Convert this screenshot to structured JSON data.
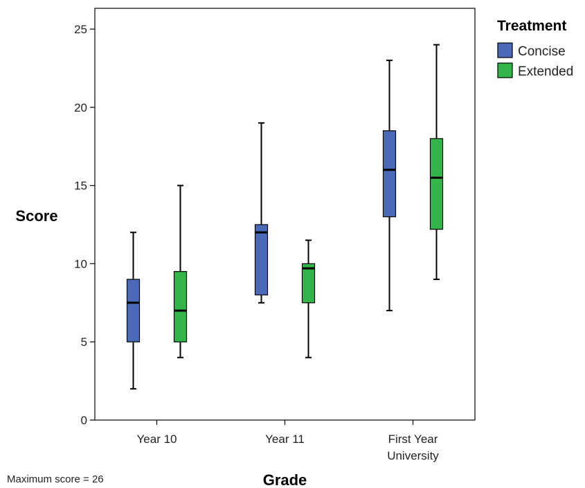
{
  "chart_data": {
    "type": "boxplot",
    "categories": [
      "Year 10",
      "Year 11",
      "First Year|University"
    ],
    "xlabel": "Grade",
    "ylabel": "Score",
    "ylim": [
      0,
      25
    ],
    "yticks": [
      0,
      5,
      10,
      15,
      20,
      25
    ],
    "grid": false,
    "legend": {
      "title": "Treatment",
      "placement": "top-right"
    },
    "series": [
      {
        "name": "Concise",
        "color": "#4a6ab8",
        "boxes": [
          {
            "min": 2,
            "q1": 5,
            "median": 7.5,
            "q3": 9,
            "max": 12
          },
          {
            "min": 7.5,
            "q1": 8,
            "median": 12,
            "q3": 12.5,
            "max": 19
          },
          {
            "min": 7,
            "q1": 13,
            "median": 16,
            "q3": 18.5,
            "max": 23
          }
        ]
      },
      {
        "name": "Extended",
        "color": "#33b54a",
        "boxes": [
          {
            "min": 4,
            "q1": 5,
            "median": 7,
            "q3": 9.5,
            "max": 15
          },
          {
            "min": 4,
            "q1": 7.5,
            "median": 9.7,
            "q3": 10,
            "max": 11.5
          },
          {
            "min": 9,
            "q1": 12.2,
            "median": 15.5,
            "q3": 18,
            "max": 24
          }
        ]
      }
    ],
    "footnote": "Maximum score = 26"
  }
}
